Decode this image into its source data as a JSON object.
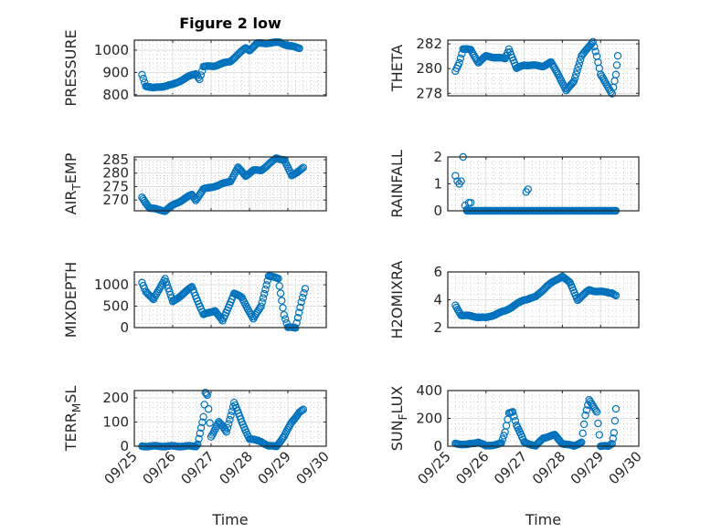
{
  "colors": {
    "marker": "#0072BD",
    "axis": "#262626",
    "grid_major": "#dfdfdf",
    "grid_minor": "#b5b5b5"
  },
  "chart_data": [
    {
      "type": "scatter",
      "title": "Figure 2 low",
      "ylabel": "PRESSURE",
      "xlabel": "",
      "ylim": [
        795,
        1045
      ],
      "yticks": [
        800,
        900,
        1000
      ],
      "xlim": [
        0,
        5
      ],
      "xticks": [
        "09/25",
        "09/26",
        "09/27",
        "09/28",
        "09/29",
        "09/30"
      ],
      "show_xticklabels": false,
      "keyframes": [
        [
          0.2,
          890
        ],
        [
          0.3,
          840
        ],
        [
          0.5,
          830
        ],
        [
          1.0,
          845
        ],
        [
          1.4,
          880
        ],
        [
          1.6,
          895
        ],
        [
          1.7,
          870
        ],
        [
          1.8,
          925
        ],
        [
          2.1,
          930
        ],
        [
          2.5,
          950
        ],
        [
          2.9,
          1010
        ],
        [
          3.0,
          1000
        ],
        [
          3.2,
          1030
        ],
        [
          3.8,
          1035
        ],
        [
          4.0,
          1020
        ],
        [
          4.3,
          1010
        ]
      ]
    },
    {
      "type": "scatter",
      "title": "",
      "ylabel": "THETA",
      "xlabel": "",
      "ylim": [
        277.8,
        282.3
      ],
      "yticks": [
        278,
        280,
        282
      ],
      "xlim": [
        0,
        5
      ],
      "xticks": [
        "09/25",
        "09/26",
        "09/27",
        "09/28",
        "09/29",
        "09/30"
      ],
      "show_xticklabels": false,
      "keyframes": [
        [
          0.2,
          279.8
        ],
        [
          0.3,
          280.5
        ],
        [
          0.4,
          281.6
        ],
        [
          0.6,
          281.5
        ],
        [
          0.8,
          280.5
        ],
        [
          1.0,
          281
        ],
        [
          1.5,
          280.8
        ],
        [
          1.6,
          281.6
        ],
        [
          1.8,
          280
        ],
        [
          2.0,
          280.3
        ],
        [
          2.5,
          280.2
        ],
        [
          2.7,
          280.5
        ],
        [
          2.9,
          279.5
        ],
        [
          3.1,
          278.2
        ],
        [
          3.3,
          279
        ],
        [
          3.5,
          281
        ],
        [
          3.8,
          282.2
        ],
        [
          3.9,
          281
        ],
        [
          4.0,
          279.5
        ],
        [
          4.3,
          278
        ],
        [
          4.4,
          279.5
        ],
        [
          4.45,
          281
        ]
      ]
    },
    {
      "type": "scatter",
      "title": "",
      "ylabel": "AIR_TEMP",
      "ylabel_main": "AIR",
      "ylabel_sub": "T",
      "ylabel_rest": "EMP",
      "xlabel": "",
      "ylim": [
        266,
        286
      ],
      "yticks": [
        270,
        275,
        280,
        285
      ],
      "xlim": [
        0,
        5
      ],
      "xticks": [
        "09/25",
        "09/26",
        "09/27",
        "09/28",
        "09/29",
        "09/30"
      ],
      "show_xticklabels": false,
      "keyframes": [
        [
          0.2,
          271
        ],
        [
          0.4,
          267
        ],
        [
          0.8,
          266
        ],
        [
          1.0,
          268
        ],
        [
          1.5,
          272
        ],
        [
          1.6,
          270
        ],
        [
          1.8,
          274
        ],
        [
          2.2,
          275.5
        ],
        [
          2.5,
          277
        ],
        [
          2.7,
          282
        ],
        [
          2.9,
          279
        ],
        [
          3.1,
          281
        ],
        [
          3.3,
          281
        ],
        [
          3.7,
          285.5
        ],
        [
          3.9,
          285
        ],
        [
          4.1,
          279
        ],
        [
          4.3,
          281
        ],
        [
          4.4,
          282
        ]
      ]
    },
    {
      "type": "scatter",
      "title": "",
      "ylabel": "RAINFALL",
      "xlabel": "",
      "ylim": [
        0,
        2
      ],
      "yticks": [
        0,
        1,
        2
      ],
      "xlim": [
        0,
        5
      ],
      "xticks": [
        "09/25",
        "09/26",
        "09/27",
        "09/28",
        "09/29",
        "09/30"
      ],
      "show_xticklabels": false,
      "points": [
        [
          0.2,
          1.3
        ],
        [
          0.25,
          1.1
        ],
        [
          0.3,
          1.0
        ],
        [
          0.35,
          1.1
        ],
        [
          0.4,
          2.0
        ],
        [
          0.45,
          0.2
        ],
        [
          0.5,
          0.05
        ],
        [
          0.55,
          0.3
        ],
        [
          0.6,
          0.3
        ],
        [
          2.05,
          0.7
        ],
        [
          2.1,
          0.8
        ]
      ],
      "zero_range": [
        0.5,
        4.4
      ]
    },
    {
      "type": "scatter",
      "title": "",
      "ylabel": "MIXDEPTH",
      "xlabel": "",
      "ylim": [
        0,
        1300
      ],
      "yticks": [
        0,
        500,
        1000
      ],
      "xlim": [
        0,
        5
      ],
      "xticks": [
        "09/25",
        "09/26",
        "09/27",
        "09/28",
        "09/29",
        "09/30"
      ],
      "show_xticklabels": false,
      "keyframes": [
        [
          0.2,
          1050
        ],
        [
          0.3,
          850
        ],
        [
          0.5,
          650
        ],
        [
          0.8,
          1150
        ],
        [
          1.0,
          600
        ],
        [
          1.5,
          950
        ],
        [
          1.8,
          300
        ],
        [
          2.1,
          400
        ],
        [
          2.3,
          150
        ],
        [
          2.6,
          800
        ],
        [
          2.8,
          700
        ],
        [
          3.1,
          200
        ],
        [
          3.3,
          500
        ],
        [
          3.5,
          1200
        ],
        [
          3.75,
          1150
        ],
        [
          3.9,
          300
        ],
        [
          4.0,
          0
        ],
        [
          4.2,
          0
        ],
        [
          4.35,
          600
        ],
        [
          4.45,
          900
        ]
      ]
    },
    {
      "type": "scatter",
      "title": "",
      "ylabel": "H2OMIXRA",
      "xlabel": "",
      "ylim": [
        2,
        6
      ],
      "yticks": [
        2,
        4,
        6
      ],
      "xlim": [
        0,
        5
      ],
      "xticks": [
        "09/25",
        "09/26",
        "09/27",
        "09/28",
        "09/29",
        "09/30"
      ],
      "show_xticklabels": false,
      "keyframes": [
        [
          0.2,
          3.6
        ],
        [
          0.35,
          2.9
        ],
        [
          1.0,
          2.7
        ],
        [
          1.5,
          3.2
        ],
        [
          2.0,
          4.0
        ],
        [
          2.3,
          4.2
        ],
        [
          2.6,
          5.0
        ],
        [
          3.0,
          5.7
        ],
        [
          3.2,
          5.2
        ],
        [
          3.4,
          4.0
        ],
        [
          3.7,
          4.7
        ],
        [
          3.9,
          4.6
        ],
        [
          4.3,
          4.5
        ],
        [
          4.4,
          4.3
        ]
      ]
    },
    {
      "type": "scatter",
      "title": "",
      "ylabel": "TERR_MSL",
      "ylabel_main": "TERR",
      "ylabel_sub": "M",
      "ylabel_rest": "SL",
      "xlabel": "Time",
      "ylim": [
        0,
        230
      ],
      "yticks": [
        0,
        100,
        200
      ],
      "xlim": [
        0,
        5
      ],
      "xticks": [
        "09/25",
        "09/26",
        "09/27",
        "09/28",
        "09/29",
        "09/30"
      ],
      "show_xticklabels": true,
      "keyframes": [
        [
          0.2,
          0
        ],
        [
          1.6,
          0
        ],
        [
          1.65,
          10
        ],
        [
          1.8,
          120
        ],
        [
          1.85,
          220
        ],
        [
          1.9,
          210
        ],
        [
          2.0,
          40
        ],
        [
          2.2,
          100
        ],
        [
          2.4,
          60
        ],
        [
          2.6,
          180
        ],
        [
          2.8,
          100
        ],
        [
          3.0,
          30
        ],
        [
          3.3,
          20
        ],
        [
          3.5,
          0
        ],
        [
          3.7,
          0
        ],
        [
          3.9,
          40
        ],
        [
          4.1,
          100
        ],
        [
          4.3,
          140
        ],
        [
          4.4,
          150
        ]
      ]
    },
    {
      "type": "scatter",
      "title": "",
      "ylabel": "SUN_FLUX",
      "ylabel_main": "SUN",
      "ylabel_sub": "F",
      "ylabel_rest": "LUX",
      "xlabel": "Time",
      "ylim": [
        0,
        400
      ],
      "yticks": [
        0,
        200,
        400
      ],
      "xlim": [
        0,
        5
      ],
      "xticks": [
        "09/25",
        "09/26",
        "09/27",
        "09/28",
        "09/29",
        "09/30"
      ],
      "show_xticklabels": true,
      "keyframes": [
        [
          0.2,
          20
        ],
        [
          0.5,
          10
        ],
        [
          0.8,
          30
        ],
        [
          1.0,
          0
        ],
        [
          1.4,
          20
        ],
        [
          1.5,
          100
        ],
        [
          1.6,
          240
        ],
        [
          1.7,
          250
        ],
        [
          1.8,
          150
        ],
        [
          2.0,
          30
        ],
        [
          2.3,
          0
        ],
        [
          2.5,
          60
        ],
        [
          2.8,
          80
        ],
        [
          3.0,
          20
        ],
        [
          3.3,
          0
        ],
        [
          3.5,
          30
        ],
        [
          3.6,
          220
        ],
        [
          3.7,
          330
        ],
        [
          3.9,
          250
        ],
        [
          4.0,
          0
        ],
        [
          4.2,
          0
        ],
        [
          4.3,
          20
        ],
        [
          4.35,
          100
        ],
        [
          4.4,
          270
        ]
      ]
    }
  ]
}
